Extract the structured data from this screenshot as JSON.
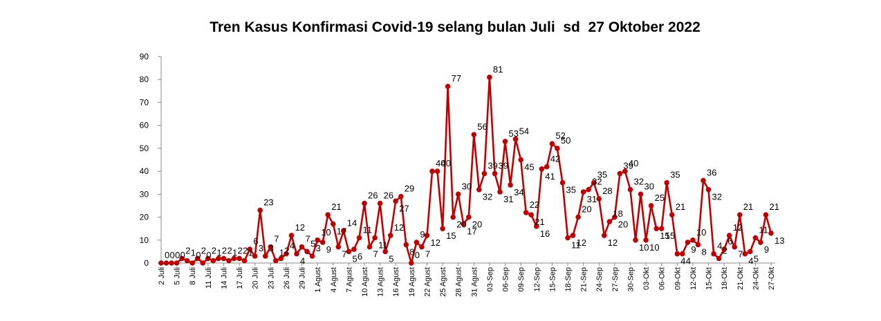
{
  "chart_data": {
    "type": "line",
    "title": "Tren Kasus Konfirmasi Covid-19 selang bulan Juli  sd  27 Oktober 2022",
    "xlabel": "",
    "ylabel": "",
    "ylim": [
      0,
      90
    ],
    "yticks": [
      "0",
      "10",
      "20",
      "30",
      "40",
      "50",
      "60",
      "70",
      "80",
      "90"
    ],
    "grid": false,
    "legend": "none",
    "line_color": "#C00000",
    "x_tick_labels": [
      "2 Juli",
      "5 Juli",
      "8 Juli",
      "11 Juli",
      "14 Juli",
      "17 Juli",
      "20 Juli",
      "23 Juli",
      "26 Juli",
      "29 Juli",
      "1 Agust",
      "4 Agust",
      "7 Agust",
      "10 Agust",
      "13 Agust",
      "16 Agust",
      "19 Agust",
      "22 Agust",
      "25 Agust",
      "28 Agust",
      "31 Agust",
      "03-Sep",
      "06-Sep",
      "09-Sep",
      "12-Sep",
      "15-Sep",
      "18-Sep",
      "21-Sep",
      "24-Sep",
      "27-Sep",
      "30-Sep",
      "03-Okt",
      "06-Okt",
      "09-Okt",
      "12-Okt",
      "15-Okt",
      "18-Okt",
      "21-Okt",
      "24-Okt",
      "27-Okt"
    ],
    "values": [
      0,
      0,
      0,
      0,
      2,
      1,
      0,
      2,
      0,
      2,
      1,
      2,
      2,
      1,
      2,
      2,
      1,
      6,
      3,
      23,
      3,
      7,
      1,
      2,
      4,
      12,
      4,
      7,
      5,
      3,
      10,
      9,
      21,
      17,
      7,
      14,
      5,
      6,
      11,
      26,
      7,
      11,
      26,
      5,
      12,
      27,
      29,
      8,
      0,
      9,
      7,
      12,
      40,
      40,
      15,
      77,
      20,
      30,
      17,
      20,
      56,
      32,
      39,
      81,
      39,
      31,
      53,
      34,
      54,
      45,
      22,
      21,
      16,
      41,
      42,
      52,
      50,
      35,
      11,
      12,
      20,
      31,
      32,
      35,
      28,
      12,
      18,
      20,
      39,
      40,
      32,
      10,
      30,
      10,
      25,
      15,
      15,
      35,
      21,
      4,
      4,
      9,
      10,
      8,
      36,
      32,
      4,
      2,
      6,
      12,
      7,
      21,
      4,
      5,
      11,
      9,
      21,
      13
    ]
  }
}
